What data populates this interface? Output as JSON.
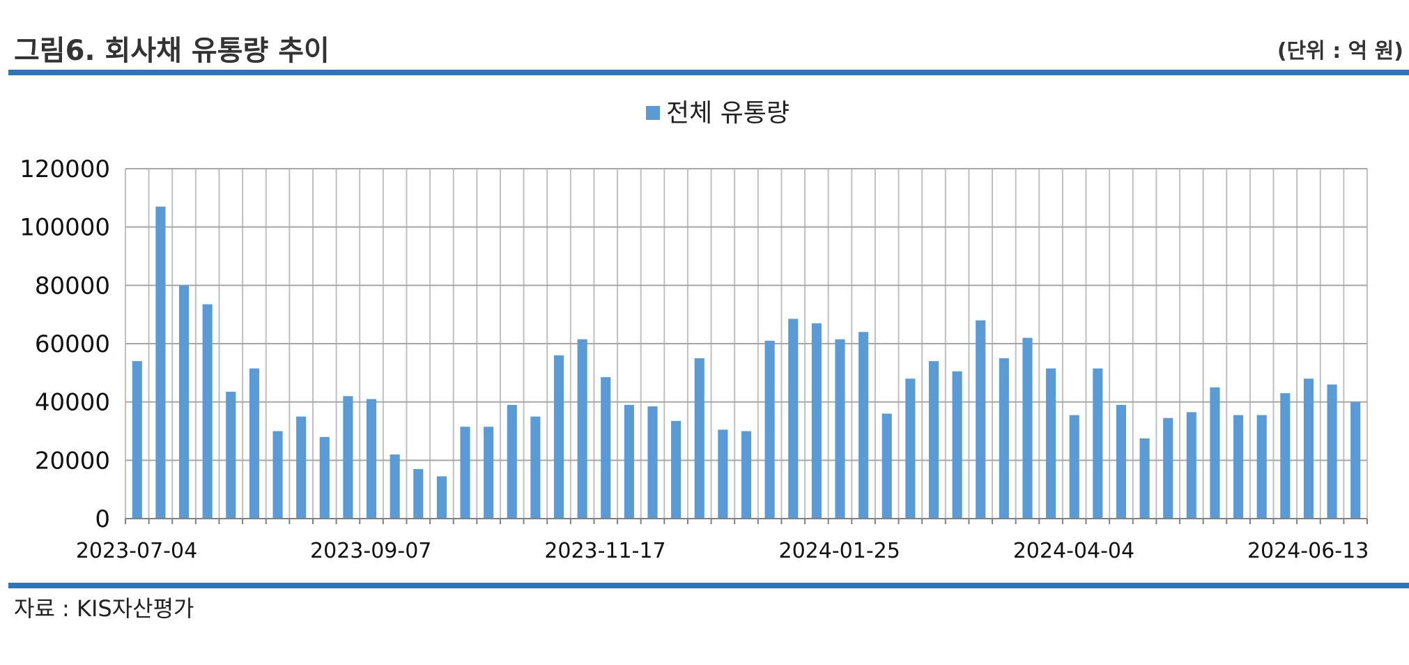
{
  "header": {
    "title": "그림6. 회사채 유통량 추이",
    "unit": "(단위 : 억 원)"
  },
  "footer": {
    "source": "자료 : KIS자산평가"
  },
  "chart_data": {
    "type": "bar",
    "legend": "전체 유통량",
    "legend_position": "top-center",
    "color": "#5B9BD5",
    "grid": true,
    "ylim": [
      0,
      120000
    ],
    "yticks": [
      0,
      20000,
      40000,
      60000,
      80000,
      100000,
      120000
    ],
    "xtick_labels": [
      "2023-07-04",
      "2023-09-07",
      "2023-11-17",
      "2024-01-25",
      "2024-04-04",
      "2024-06-13"
    ],
    "values": [
      54000,
      107000,
      80000,
      73500,
      43500,
      51500,
      30000,
      35000,
      28000,
      42000,
      41000,
      22000,
      17000,
      14500,
      31500,
      31500,
      39000,
      35000,
      56000,
      61500,
      48500,
      39000,
      38500,
      33500,
      55000,
      30500,
      30000,
      61000,
      68500,
      67000,
      61500,
      64000,
      36000,
      48000,
      54000,
      50500,
      68000,
      55000,
      62000,
      51500,
      35500,
      51500,
      39000,
      27500,
      34500,
      36500,
      45000,
      35500,
      35500,
      43000,
      48000,
      46000,
      40000
    ]
  }
}
